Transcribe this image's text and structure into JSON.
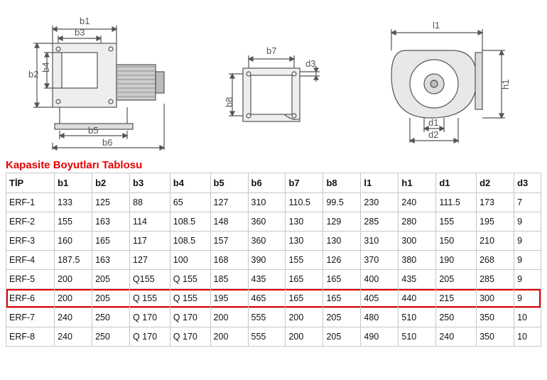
{
  "title": "Kapasite Boyutları Tablosu",
  "drawings": {
    "view1": {
      "labels": [
        "b1",
        "b2",
        "b3",
        "b4",
        "b5",
        "b6"
      ]
    },
    "view2": {
      "labels": [
        "b7",
        "b8",
        "d3"
      ]
    },
    "view3": {
      "labels": [
        "l1",
        "h1",
        "d1",
        "d2"
      ]
    }
  },
  "table": {
    "columns": [
      "TİP",
      "b1",
      "b2",
      "b3",
      "b4",
      "b5",
      "b6",
      "b7",
      "b8",
      "l1",
      "h1",
      "d1",
      "d2",
      "d3"
    ],
    "rows": [
      [
        "ERF-1",
        "133",
        "125",
        "88",
        "65",
        "127",
        "310",
        "110.5",
        "99.5",
        "230",
        "240",
        "111.5",
        "173",
        "7"
      ],
      [
        "ERF-2",
        "155",
        "163",
        "114",
        "108.5",
        "148",
        "360",
        "130",
        "129",
        "285",
        "280",
        "155",
        "195",
        "9"
      ],
      [
        "ERF-3",
        "160",
        "165",
        "117",
        "108.5",
        "157",
        "360",
        "130",
        "130",
        "310",
        "300",
        "150",
        "210",
        "9"
      ],
      [
        "ERF-4",
        "187.5",
        "163",
        "127",
        "100",
        "168",
        "390",
        "155",
        "126",
        "370",
        "380",
        "190",
        "268",
        "9"
      ],
      [
        "ERF-5",
        "200",
        "205",
        "Q155",
        "Q 155",
        "185",
        "435",
        "165",
        "165",
        "400",
        "435",
        "205",
        "285",
        "9"
      ],
      [
        "ERF-6",
        "200",
        "205",
        "Q 155",
        "Q 155",
        "195",
        "465",
        "165",
        "165",
        "405",
        "440",
        "215",
        "300",
        "9"
      ],
      [
        "ERF-7",
        "240",
        "250",
        "Q 170",
        "Q 170",
        "200",
        "555",
        "200",
        "205",
        "480",
        "510",
        "250",
        "350",
        "10"
      ],
      [
        "ERF-8",
        "240",
        "250",
        "Q 170",
        "Q 170",
        "200",
        "555",
        "200",
        "205",
        "490",
        "510",
        "240",
        "350",
        "10"
      ]
    ],
    "highlight_row_index": 5,
    "highlight_color": "#e60000",
    "column_widths_pct": [
      9,
      7,
      7,
      7.5,
      7.5,
      7,
      7,
      7,
      7,
      7,
      7,
      7.5,
      7,
      5
    ],
    "border_color": "#c7c7c7",
    "header_font_weight": "bold",
    "cell_align": "left"
  },
  "colors": {
    "title": "#e60000",
    "drawing_stroke": "#555555",
    "drawing_fill_light": "#d8d8d8",
    "drawing_fill_dark": "#aaaaaa",
    "background": "#ffffff"
  },
  "fonts": {
    "title_size_pt": 11,
    "header_size_pt": 10,
    "cell_size_pt": 9.5,
    "dim_label_size_pt": 10
  }
}
